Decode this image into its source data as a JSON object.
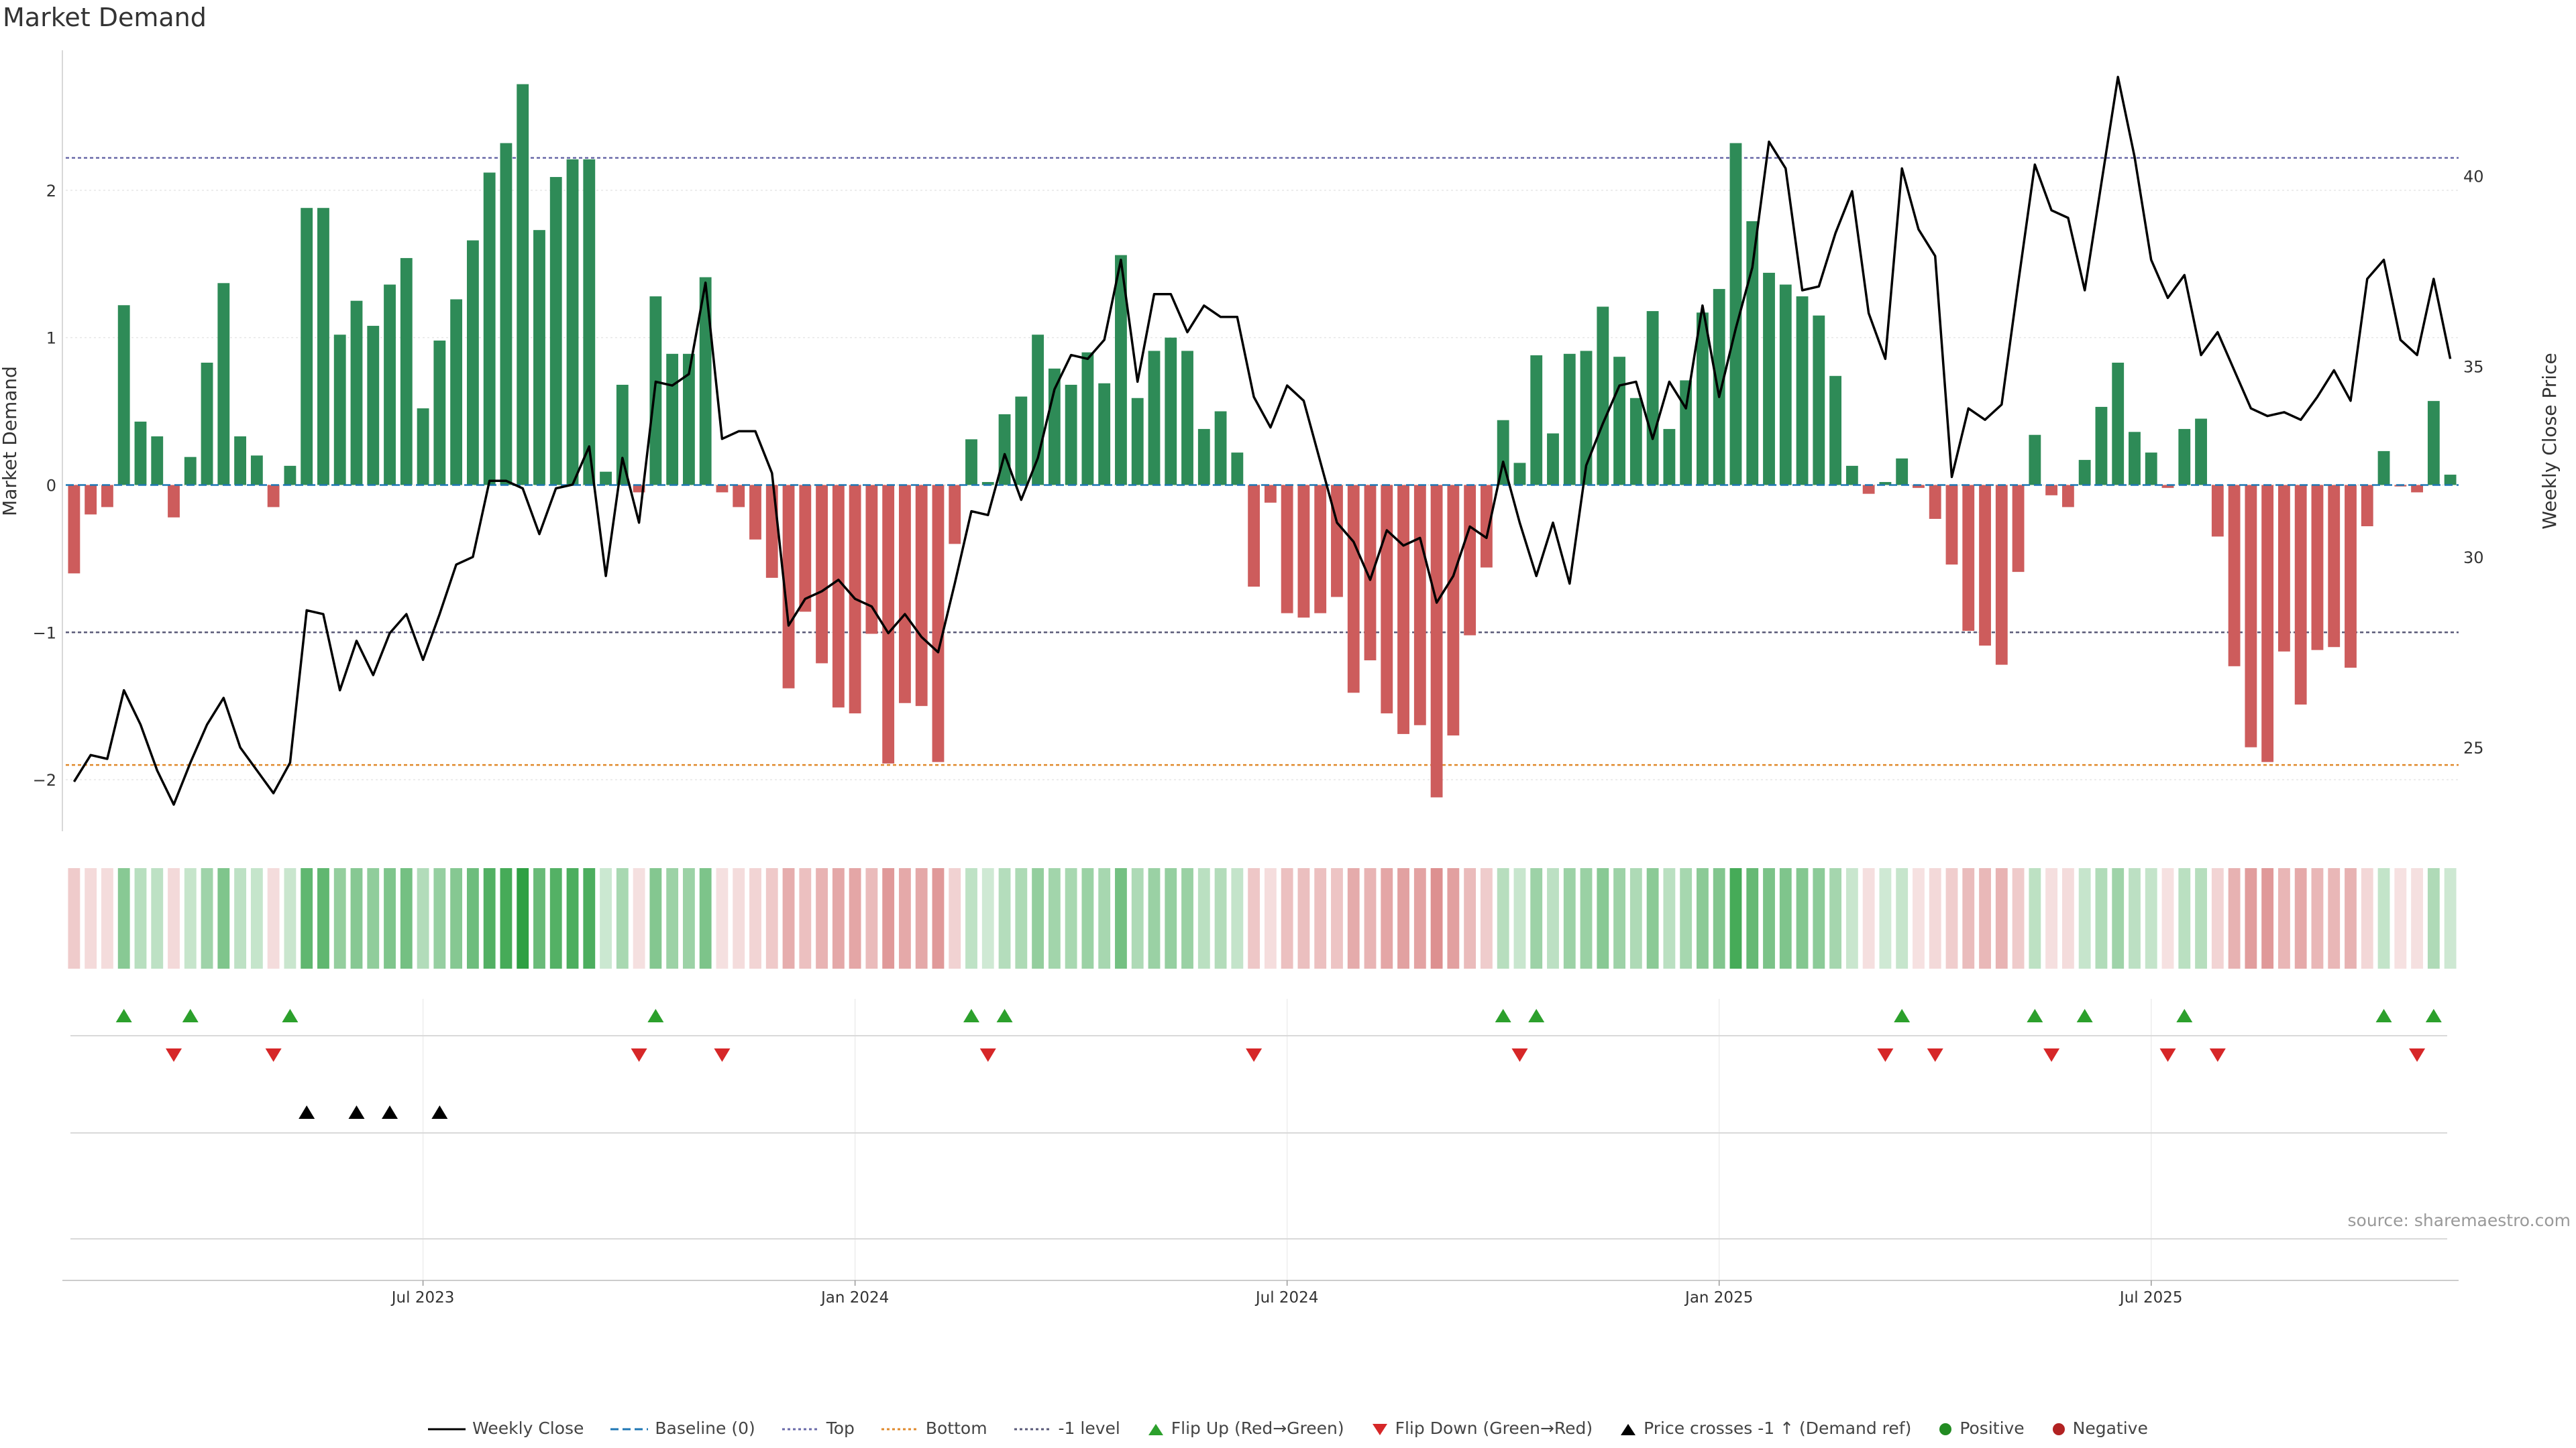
{
  "title": "Market Demand",
  "source": "source: sharemaestro.com",
  "colors": {
    "positive": "#2e8b57",
    "negative": "#cd5c5c",
    "price": "#000000",
    "top_line": "#6a6aa8",
    "bottom_line": "#e08a2c",
    "level_line": "#5a5a78",
    "flip_up": "#2ca02c",
    "flip_down": "#d62728",
    "cross": "#000000",
    "positive_dot": "#228b22",
    "negative_dot": "#b22222",
    "baseline": "#1f77b4"
  },
  "chart_data": {
    "type": "bar",
    "title": "Market Demand",
    "ylabel_left": "Market Demand",
    "ylabel_right": "Weekly Close Price",
    "left_ylim": [
      -2.35,
      2.95
    ],
    "left_ticks": [
      -2,
      -1,
      0,
      1,
      2
    ],
    "left_tick_labels": [
      "−2",
      "−1",
      "0",
      "1",
      "2"
    ],
    "right_ylim": [
      22.8,
      43.3
    ],
    "right_ticks": [
      25,
      30,
      35,
      40
    ],
    "right_tick_labels": [
      "25",
      "30",
      "35",
      "40"
    ],
    "x_ticks": [
      {
        "index": 21,
        "label": "Jul 2023"
      },
      {
        "index": 47,
        "label": "Jan 2024"
      },
      {
        "index": 73,
        "label": "Jul 2024"
      },
      {
        "index": 99,
        "label": "Jan 2025"
      },
      {
        "index": 125,
        "label": "Jul 2025"
      }
    ],
    "reference_lines": {
      "top": 2.22,
      "bottom": -1.9,
      "level": -1
    },
    "demand": [
      -0.6,
      -0.2,
      -0.15,
      1.22,
      0.43,
      0.33,
      -0.22,
      0.19,
      0.83,
      1.37,
      0.33,
      0.2,
      -0.15,
      0.13,
      1.88,
      1.88,
      1.02,
      1.25,
      1.08,
      1.36,
      1.54,
      0.52,
      0.98,
      1.26,
      1.66,
      2.12,
      2.32,
      2.72,
      1.73,
      2.09,
      2.21,
      2.21,
      0.09,
      0.68,
      -0.05,
      1.28,
      0.89,
      0.89,
      1.41,
      -0.05,
      -0.15,
      -0.37,
      -0.63,
      -1.38,
      -0.86,
      -1.21,
      -1.51,
      -1.55,
      -1.01,
      -1.89,
      -1.48,
      -1.5,
      -1.88,
      -0.4,
      0.31,
      0.02,
      0.48,
      0.6,
      1.02,
      0.79,
      0.68,
      0.9,
      0.69,
      1.56,
      0.59,
      0.91,
      1.0,
      0.91,
      0.38,
      0.5,
      0.22,
      -0.69,
      -0.12,
      -0.87,
      -0.9,
      -0.87,
      -0.76,
      -1.41,
      -1.19,
      -1.55,
      -1.69,
      -1.63,
      -2.12,
      -1.7,
      -1.02,
      -0.56,
      0.44,
      0.15,
      0.88,
      0.35,
      0.89,
      0.91,
      1.21,
      0.87,
      0.59,
      1.18,
      0.38,
      0.71,
      1.17,
      1.33,
      2.32,
      1.79,
      1.44,
      1.36,
      1.28,
      1.15,
      0.74,
      0.13,
      -0.06,
      0.02,
      0.18,
      -0.02,
      -0.23,
      -0.54,
      -0.99,
      -1.09,
      -1.22,
      -0.59,
      0.34,
      -0.07,
      -0.15,
      0.17,
      0.53,
      0.83,
      0.36,
      0.22,
      -0.02,
      0.38,
      0.45,
      -0.35,
      -1.23,
      -1.78,
      -1.88,
      -1.13,
      -1.49,
      -1.12,
      -1.1,
      -1.24,
      -0.28,
      0.23,
      -0.01,
      -0.05,
      0.57,
      0.07
    ],
    "price": [
      24.1,
      24.8,
      24.7,
      26.5,
      25.6,
      24.4,
      23.5,
      24.6,
      25.6,
      26.3,
      25,
      24.4,
      23.8,
      24.6,
      28.6,
      28.5,
      26.5,
      27.8,
      26.9,
      28,
      28.5,
      27.3,
      28.5,
      29.8,
      30,
      32,
      32,
      31.8,
      30.6,
      31.8,
      31.9,
      32.9,
      29.5,
      32.6,
      30.9,
      34.6,
      34.5,
      34.8,
      37.2,
      33.1,
      33.3,
      33.3,
      32.2,
      28.2,
      28.9,
      29.1,
      29.4,
      28.9,
      28.7,
      28,
      28.5,
      27.9,
      27.5,
      29.3,
      31.2,
      31.1,
      32.7,
      31.5,
      32.6,
      34.4,
      35.3,
      35.2,
      35.7,
      37.8,
      34.6,
      36.9,
      36.9,
      35.9,
      36.6,
      36.3,
      36.3,
      34.2,
      33.4,
      34.5,
      34.1,
      32.5,
      30.9,
      30.4,
      29.4,
      30.7,
      30.3,
      30.5,
      28.8,
      29.5,
      30.8,
      30.5,
      32.5,
      30.9,
      29.5,
      30.9,
      29.3,
      32.4,
      33.5,
      34.5,
      34.6,
      33.1,
      34.6,
      33.9,
      36.6,
      34.2,
      36,
      37.6,
      40.9,
      40.2,
      37,
      37.1,
      38.5,
      39.6,
      36.4,
      35.2,
      40.2,
      38.6,
      37.9,
      32.1,
      33.9,
      33.6,
      34,
      37.2,
      40.3,
      39.1,
      38.9,
      37,
      39.8,
      42.6,
      40.5,
      37.8,
      36.8,
      37.4,
      35.3,
      35.9,
      34.9,
      33.9,
      33.7,
      33.8,
      33.6,
      34.2,
      34.9,
      34.1,
      37.3,
      37.8,
      35.7,
      35.3,
      37.3,
      35.2
    ],
    "flip_up_indices": [
      3,
      7,
      13,
      35,
      54,
      56,
      86,
      88,
      110,
      118,
      121,
      127,
      139,
      142
    ],
    "flip_down_indices": [
      6,
      12,
      34,
      39,
      55,
      71,
      87,
      109,
      112,
      119,
      126,
      129,
      141
    ],
    "price_cross_indices": [
      14,
      17,
      19,
      22
    ]
  },
  "legend": [
    {
      "label": "Weekly Close",
      "icon": "solid-line-icon"
    },
    {
      "label": "Baseline (0)",
      "icon": "dashed-line-icon"
    },
    {
      "label": "Top",
      "icon": "dotted-line-icon"
    },
    {
      "label": "Bottom",
      "icon": "dotted-line-icon"
    },
    {
      "label": "-1 level",
      "icon": "dotted-line-icon"
    },
    {
      "label": "Flip Up (Red→Green)",
      "icon": "triangle-up-icon"
    },
    {
      "label": "Flip Down (Green→Red)",
      "icon": "triangle-down-icon"
    },
    {
      "label": "Price crosses -1 ↑ (Demand ref)",
      "icon": "triangle-up-icon"
    },
    {
      "label": "Positive",
      "icon": "circle-icon"
    },
    {
      "label": "Negative",
      "icon": "circle-icon"
    }
  ]
}
